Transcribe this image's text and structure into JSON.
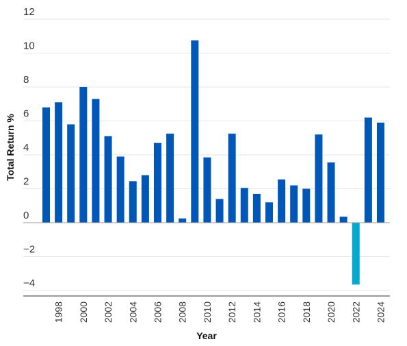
{
  "chart_data": {
    "type": "bar",
    "xlabel": "Year",
    "ylabel": "Total Return %",
    "ylim": [
      -4.4,
      12
    ],
    "yticks": [
      12,
      10,
      8,
      6,
      4,
      2,
      0,
      -2,
      -4
    ],
    "ytick_labels": [
      "12",
      "10",
      "8",
      "6",
      "4",
      "2",
      "0",
      "−2",
      "−4"
    ],
    "xtick_labels": [
      "1998",
      "2000",
      "2002",
      "2004",
      "2006",
      "2008",
      "2010",
      "2012",
      "2014",
      "2016",
      "2018",
      "2020",
      "2022",
      "2024"
    ],
    "grid": true,
    "categories": [
      "1997",
      "1998",
      "1999",
      "2000",
      "2001",
      "2002",
      "2003",
      "2004",
      "2005",
      "2006",
      "2007",
      "2008",
      "2009",
      "2010",
      "2011",
      "2012",
      "2013",
      "2014",
      "2015",
      "2016",
      "2017",
      "2018",
      "2019",
      "2020",
      "2021",
      "2022",
      "2023",
      "2024"
    ],
    "values": [
      6.8,
      7.1,
      5.8,
      8.0,
      7.3,
      5.1,
      3.9,
      2.45,
      2.8,
      4.7,
      5.25,
      0.25,
      10.75,
      3.85,
      1.4,
      5.25,
      2.05,
      1.7,
      1.2,
      2.55,
      2.2,
      2.0,
      5.2,
      3.55,
      0.35,
      -3.65,
      6.2,
      5.9
    ],
    "colors": {
      "positive": "#0057B8",
      "negative": "#00A9CE",
      "grid": "#E6E6E6",
      "axis": "#999999"
    }
  }
}
